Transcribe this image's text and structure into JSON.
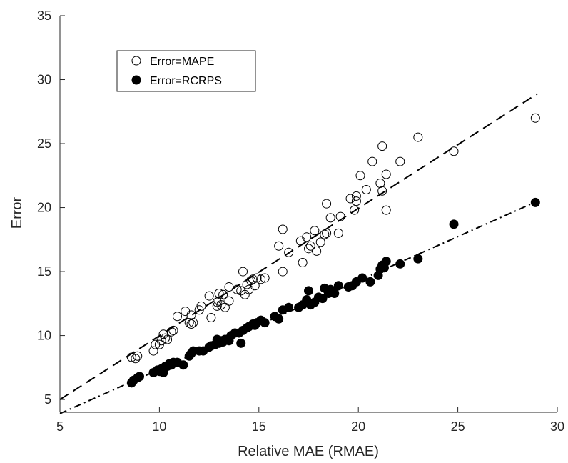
{
  "chart_data": {
    "type": "scatter",
    "title": "",
    "xlabel": "Relative MAE (RMAE)",
    "ylabel": "Error",
    "xlim": [
      5,
      30
    ],
    "ylim": [
      4,
      35
    ],
    "xticks": [
      5,
      10,
      15,
      20,
      25,
      30
    ],
    "yticks": [
      5,
      10,
      15,
      20,
      25,
      30,
      35
    ],
    "grid": false,
    "legend_position": "top-left",
    "series": [
      {
        "name": "Error=MAPE",
        "marker": "open-circle",
        "color": "#000000",
        "fit_line": {
          "style": "dashed",
          "x": [
            5,
            29
          ],
          "y": [
            5.0,
            28.9
          ]
        },
        "points": [
          [
            8.6,
            8.3
          ],
          [
            8.8,
            8.2
          ],
          [
            8.9,
            8.4
          ],
          [
            9.7,
            8.8
          ],
          [
            9.8,
            9.3
          ],
          [
            10.0,
            9.3
          ],
          [
            10.1,
            9.6
          ],
          [
            10.2,
            10.1
          ],
          [
            10.3,
            9.8
          ],
          [
            10.4,
            9.7
          ],
          [
            10.6,
            10.3
          ],
          [
            10.7,
            10.4
          ],
          [
            10.9,
            11.5
          ],
          [
            11.3,
            11.9
          ],
          [
            11.5,
            11.0
          ],
          [
            11.6,
            10.9
          ],
          [
            11.6,
            11.6
          ],
          [
            11.7,
            11.0
          ],
          [
            12.0,
            12.0
          ],
          [
            12.1,
            12.3
          ],
          [
            12.5,
            13.1
          ],
          [
            12.6,
            11.4
          ],
          [
            12.9,
            12.6
          ],
          [
            12.9,
            12.3
          ],
          [
            13.0,
            13.3
          ],
          [
            13.0,
            12.7
          ],
          [
            13.1,
            12.4
          ],
          [
            13.2,
            13.2
          ],
          [
            13.3,
            12.2
          ],
          [
            13.5,
            13.8
          ],
          [
            13.5,
            12.7
          ],
          [
            13.9,
            13.6
          ],
          [
            14.1,
            13.5
          ],
          [
            14.2,
            15.0
          ],
          [
            14.3,
            13.2
          ],
          [
            14.4,
            14.0
          ],
          [
            14.5,
            13.6
          ],
          [
            14.6,
            14.3
          ],
          [
            14.7,
            14.4
          ],
          [
            14.8,
            13.9
          ],
          [
            14.9,
            14.5
          ],
          [
            15.1,
            14.4
          ],
          [
            15.3,
            14.5
          ],
          [
            16.0,
            17.0
          ],
          [
            16.2,
            18.3
          ],
          [
            16.2,
            15.0
          ],
          [
            16.5,
            16.5
          ],
          [
            17.1,
            17.4
          ],
          [
            17.2,
            15.7
          ],
          [
            17.4,
            17.7
          ],
          [
            17.5,
            16.8
          ],
          [
            17.6,
            17.0
          ],
          [
            17.8,
            18.2
          ],
          [
            17.9,
            16.6
          ],
          [
            18.1,
            17.3
          ],
          [
            18.3,
            17.9
          ],
          [
            18.4,
            18.0
          ],
          [
            18.4,
            20.3
          ],
          [
            18.6,
            19.2
          ],
          [
            19.0,
            18.0
          ],
          [
            19.1,
            19.3
          ],
          [
            19.6,
            20.7
          ],
          [
            19.8,
            19.8
          ],
          [
            19.9,
            20.9
          ],
          [
            19.9,
            20.5
          ],
          [
            20.1,
            22.5
          ],
          [
            20.4,
            21.4
          ],
          [
            20.7,
            23.6
          ],
          [
            21.1,
            21.9
          ],
          [
            21.2,
            21.3
          ],
          [
            21.2,
            24.8
          ],
          [
            21.4,
            19.8
          ],
          [
            21.4,
            22.6
          ],
          [
            22.1,
            23.6
          ],
          [
            23.0,
            25.5
          ],
          [
            24.8,
            24.4
          ],
          [
            28.9,
            27.0
          ]
        ]
      },
      {
        "name": "Error=RCRPS",
        "marker": "filled-circle",
        "color": "#000000",
        "fit_line": {
          "style": "dash-dot",
          "x": [
            5,
            29
          ],
          "y": [
            3.9,
            20.5
          ]
        },
        "points": [
          [
            8.6,
            6.3
          ],
          [
            8.7,
            6.5
          ],
          [
            8.9,
            6.7
          ],
          [
            9.0,
            6.8
          ],
          [
            9.7,
            7.1
          ],
          [
            9.9,
            7.3
          ],
          [
            10.0,
            7.2
          ],
          [
            10.1,
            7.4
          ],
          [
            10.2,
            7.1
          ],
          [
            10.3,
            7.6
          ],
          [
            10.4,
            7.6
          ],
          [
            10.5,
            7.8
          ],
          [
            10.6,
            7.7
          ],
          [
            10.7,
            7.9
          ],
          [
            10.9,
            7.9
          ],
          [
            11.2,
            7.7
          ],
          [
            11.5,
            8.4
          ],
          [
            11.6,
            8.6
          ],
          [
            11.7,
            8.8
          ],
          [
            12.0,
            8.8
          ],
          [
            12.2,
            8.8
          ],
          [
            12.5,
            9.1
          ],
          [
            12.6,
            9.2
          ],
          [
            12.8,
            9.3
          ],
          [
            12.9,
            9.7
          ],
          [
            13.0,
            9.4
          ],
          [
            13.1,
            9.6
          ],
          [
            13.2,
            9.5
          ],
          [
            13.3,
            9.7
          ],
          [
            13.5,
            9.6
          ],
          [
            13.6,
            10.0
          ],
          [
            13.8,
            10.2
          ],
          [
            14.0,
            10.2
          ],
          [
            14.1,
            9.4
          ],
          [
            14.2,
            10.4
          ],
          [
            14.4,
            10.6
          ],
          [
            14.5,
            10.7
          ],
          [
            14.7,
            10.9
          ],
          [
            14.8,
            10.8
          ],
          [
            14.9,
            11.0
          ],
          [
            15.1,
            11.2
          ],
          [
            15.3,
            11.0
          ],
          [
            15.8,
            11.5
          ],
          [
            16.0,
            11.3
          ],
          [
            16.2,
            12.0
          ],
          [
            16.5,
            12.2
          ],
          [
            17.0,
            12.2
          ],
          [
            17.2,
            12.4
          ],
          [
            17.4,
            12.8
          ],
          [
            17.5,
            13.5
          ],
          [
            17.6,
            12.4
          ],
          [
            17.8,
            12.6
          ],
          [
            18.0,
            13.0
          ],
          [
            18.2,
            12.9
          ],
          [
            18.3,
            13.7
          ],
          [
            18.5,
            13.3
          ],
          [
            18.6,
            13.6
          ],
          [
            18.8,
            13.3
          ],
          [
            19.0,
            13.9
          ],
          [
            19.5,
            13.8
          ],
          [
            19.7,
            13.9
          ],
          [
            19.9,
            14.2
          ],
          [
            20.2,
            14.5
          ],
          [
            20.6,
            14.2
          ],
          [
            21.0,
            14.7
          ],
          [
            21.1,
            15.2
          ],
          [
            21.2,
            15.5
          ],
          [
            21.3,
            15.3
          ],
          [
            21.4,
            15.8
          ],
          [
            22.1,
            15.6
          ],
          [
            23.0,
            16.0
          ],
          [
            24.8,
            18.7
          ],
          [
            28.9,
            20.4
          ]
        ]
      }
    ]
  }
}
